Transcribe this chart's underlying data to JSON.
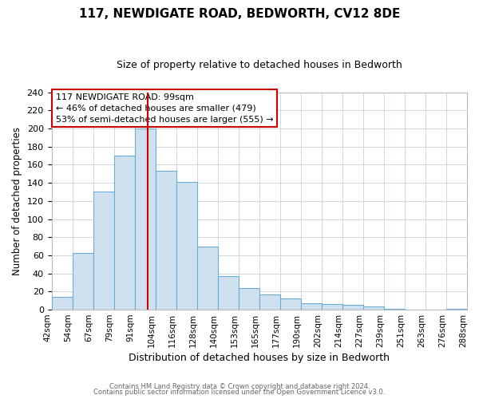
{
  "title": "117, NEWDIGATE ROAD, BEDWORTH, CV12 8DE",
  "subtitle": "Size of property relative to detached houses in Bedworth",
  "xlabel": "Distribution of detached houses by size in Bedworth",
  "ylabel": "Number of detached properties",
  "bin_labels": [
    "42sqm",
    "54sqm",
    "67sqm",
    "79sqm",
    "91sqm",
    "104sqm",
    "116sqm",
    "128sqm",
    "140sqm",
    "153sqm",
    "165sqm",
    "177sqm",
    "190sqm",
    "202sqm",
    "214sqm",
    "227sqm",
    "239sqm",
    "251sqm",
    "263sqm",
    "276sqm",
    "288sqm"
  ],
  "bar_heights": [
    14,
    63,
    130,
    170,
    200,
    153,
    141,
    70,
    37,
    24,
    17,
    12,
    7,
    6,
    5,
    4,
    1,
    0,
    0,
    1
  ],
  "bar_color": "#cfe0ef",
  "bar_edge_color": "#6aaed6",
  "vline_x": 4.5,
  "vline_color": "#cc0000",
  "ylim": [
    0,
    240
  ],
  "yticks": [
    0,
    20,
    40,
    60,
    80,
    100,
    120,
    140,
    160,
    180,
    200,
    220,
    240
  ],
  "annotation_title": "117 NEWDIGATE ROAD: 99sqm",
  "annotation_line1": "← 46% of detached houses are smaller (479)",
  "annotation_line2": "53% of semi-detached houses are larger (555) →",
  "annotation_box_color": "#ffffff",
  "annotation_box_edge_color": "#cc0000",
  "footer1": "Contains HM Land Registry data © Crown copyright and database right 2024.",
  "footer2": "Contains public sector information licensed under the Open Government Licence v3.0.",
  "background_color": "#ffffff",
  "grid_color": "#d0d8e0"
}
